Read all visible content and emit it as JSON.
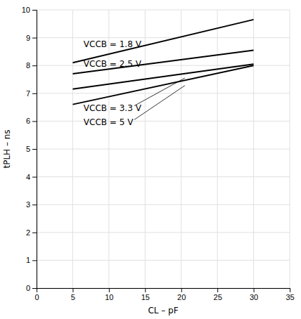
{
  "chart_data": {
    "type": "line",
    "x_label": "CL – pF",
    "y_label": "tPLH – ns",
    "xlim": [
      0,
      35
    ],
    "ylim": [
      0,
      10
    ],
    "xticks": [
      0,
      5,
      10,
      15,
      20,
      25,
      30,
      35
    ],
    "yticks": [
      0,
      1,
      2,
      3,
      4,
      5,
      6,
      7,
      8,
      9,
      10
    ],
    "grid": true,
    "color": "#000000",
    "series": [
      {
        "x": [
          5,
          30
        ],
        "values": [
          8.1,
          9.65
        ]
      },
      {
        "x": [
          5,
          30
        ],
        "values": [
          7.7,
          8.55
        ]
      },
      {
        "x": [
          5,
          30
        ],
        "values": [
          7.15,
          8.05
        ]
      },
      {
        "x": [
          5,
          30
        ],
        "values": [
          6.6,
          8.0
        ]
      }
    ],
    "annotations": [
      {
        "text": "VCCB = 1.8 V",
        "x": 6.5,
        "y": 8.75
      },
      {
        "text": "VCCB = 2.5 V",
        "x": 6.5,
        "y": 8.05
      },
      {
        "text": "VCCB = 3.3 V",
        "x": 6.5,
        "y": 6.45,
        "line": {
          "x": [
            13.5,
            20.5
          ],
          "y": [
            6.55,
            7.55
          ]
        }
      },
      {
        "text": "VCCB = 5 V",
        "x": 6.5,
        "y": 5.95,
        "line": {
          "x": [
            13.5,
            20.5
          ],
          "y": [
            6.05,
            7.28
          ]
        }
      }
    ]
  }
}
